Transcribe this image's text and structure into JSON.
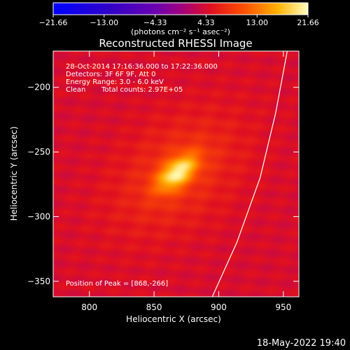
{
  "chart_data": {
    "type": "heatmap",
    "title": "Reconstructed RHESSI Image",
    "xlabel": "Heliocentric X (arcsec)",
    "ylabel": "Heliocentric Y (arcsec)",
    "xlim": [
      772,
      962
    ],
    "ylim": [
      -362,
      -172
    ],
    "x_ticks": [
      800,
      850,
      900,
      950
    ],
    "x_tick_labels": [
      "800",
      "850",
      "900",
      "950"
    ],
    "y_ticks": [
      -200,
      -250,
      -300,
      -350
    ],
    "y_tick_labels": [
      "−200",
      "−250",
      "−300",
      "−350"
    ],
    "colorbar": {
      "range": [
        -21.66,
        21.66
      ],
      "ticks": [
        -21.66,
        -13.0,
        -4.33,
        4.33,
        13.0,
        21.66
      ],
      "tick_labels": [
        "−21.66",
        "−13.00",
        "−4.33",
        "4.33",
        "13.00",
        "21.66"
      ],
      "unit_label": "(photons cm⁻² s⁻¹ asec⁻²)"
    },
    "source": {
      "peak_x": 868,
      "peak_y": -266,
      "peak_value": 21.66,
      "background_value": 4.5
    },
    "limb": {
      "points": [
        [
          953,
          -172
        ],
        [
          944,
          -220
        ],
        [
          932,
          -270
        ],
        [
          914,
          -320
        ],
        [
          895,
          -362
        ]
      ]
    },
    "annotations": {
      "time_range": "28-Oct-2014 17:16:36.000 to 17:22:36.000",
      "detectors": "Detectors: 3F 6F 9F, Att 0",
      "energy_range": "Energy Range: 3.0 - 6.0 keV",
      "method": "Clean",
      "total_counts": "Total counts: 2.97E+05",
      "peak_position": "Position of Peak = [868,-266]"
    }
  },
  "footer": {
    "timestamp": "18-May-2022 19:40"
  }
}
